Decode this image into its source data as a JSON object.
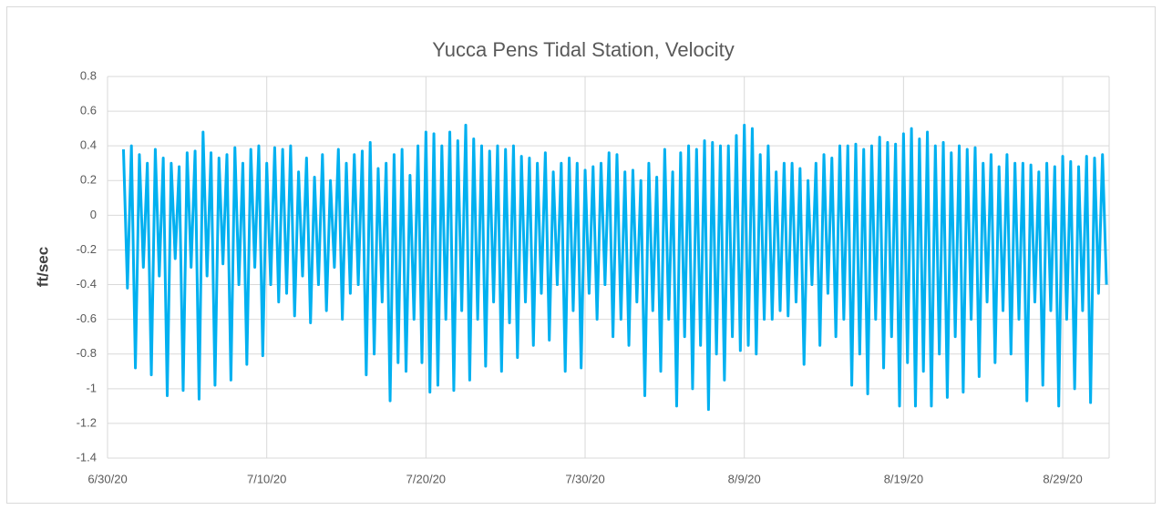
{
  "chart_data": {
    "type": "line",
    "title": "Yucca Pens Tidal Station, Velocity",
    "y_label": "ft/sec",
    "xlim": [
      "2020-06-30T00",
      "2020-08-31T22"
    ],
    "xticks": [
      {
        "value": "2020-06-30",
        "label": "6/30/20"
      },
      {
        "value": "2020-07-10",
        "label": "7/10/20"
      },
      {
        "value": "2020-07-20",
        "label": "7/20/20"
      },
      {
        "value": "2020-07-30",
        "label": "7/30/20"
      },
      {
        "value": "2020-08-09",
        "label": "8/9/20"
      },
      {
        "value": "2020-08-19",
        "label": "8/19/20"
      },
      {
        "value": "2020-08-29",
        "label": "8/29/20"
      }
    ],
    "ylim": [
      -1.4,
      0.8
    ],
    "yticks": [
      0.8,
      0.6,
      0.4,
      0.2,
      0,
      -0.2,
      -0.4,
      -0.6,
      -0.8,
      -1,
      -1.2,
      -1.4
    ],
    "grid": true,
    "x": [
      "2020-07-01T00",
      "2020-07-01T06",
      "2020-07-01T12",
      "2020-07-01T18",
      "2020-07-02T00",
      "2020-07-02T06",
      "2020-07-02T12",
      "2020-07-02T18",
      "2020-07-03T00",
      "2020-07-03T06",
      "2020-07-03T12",
      "2020-07-03T18",
      "2020-07-04T00",
      "2020-07-04T06",
      "2020-07-04T12",
      "2020-07-04T18",
      "2020-07-05T00",
      "2020-07-05T06",
      "2020-07-05T12",
      "2020-07-05T18",
      "2020-07-06T00",
      "2020-07-06T06",
      "2020-07-06T12",
      "2020-07-06T18",
      "2020-07-07T00",
      "2020-07-07T06",
      "2020-07-07T12",
      "2020-07-07T18",
      "2020-07-08T00",
      "2020-07-08T06",
      "2020-07-08T12",
      "2020-07-08T18",
      "2020-07-09T00",
      "2020-07-09T06",
      "2020-07-09T12",
      "2020-07-09T18",
      "2020-07-10T00",
      "2020-07-10T06",
      "2020-07-10T12",
      "2020-07-10T18",
      "2020-07-11T00",
      "2020-07-11T06",
      "2020-07-11T12",
      "2020-07-11T18",
      "2020-07-12T00",
      "2020-07-12T06",
      "2020-07-12T12",
      "2020-07-12T18",
      "2020-07-13T00",
      "2020-07-13T06",
      "2020-07-13T12",
      "2020-07-13T18",
      "2020-07-14T00",
      "2020-07-14T06",
      "2020-07-14T12",
      "2020-07-14T18",
      "2020-07-15T00",
      "2020-07-15T06",
      "2020-07-15T12",
      "2020-07-15T18",
      "2020-07-16T00",
      "2020-07-16T06",
      "2020-07-16T12",
      "2020-07-16T18",
      "2020-07-17T00",
      "2020-07-17T06",
      "2020-07-17T12",
      "2020-07-17T18",
      "2020-07-18T00",
      "2020-07-18T06",
      "2020-07-18T12",
      "2020-07-18T18",
      "2020-07-19T00",
      "2020-07-19T06",
      "2020-07-19T12",
      "2020-07-19T18",
      "2020-07-20T00",
      "2020-07-20T06",
      "2020-07-20T12",
      "2020-07-20T18",
      "2020-07-21T00",
      "2020-07-21T06",
      "2020-07-21T12",
      "2020-07-21T18",
      "2020-07-22T00",
      "2020-07-22T06",
      "2020-07-22T12",
      "2020-07-22T18",
      "2020-07-23T00",
      "2020-07-23T06",
      "2020-07-23T12",
      "2020-07-23T18",
      "2020-07-24T00",
      "2020-07-24T06",
      "2020-07-24T12",
      "2020-07-24T18",
      "2020-07-25T00",
      "2020-07-25T06",
      "2020-07-25T12",
      "2020-07-25T18",
      "2020-07-26T00",
      "2020-07-26T06",
      "2020-07-26T12",
      "2020-07-26T18",
      "2020-07-27T00",
      "2020-07-27T06",
      "2020-07-27T12",
      "2020-07-27T18",
      "2020-07-28T00",
      "2020-07-28T06",
      "2020-07-28T12",
      "2020-07-28T18",
      "2020-07-29T00",
      "2020-07-29T06",
      "2020-07-29T12",
      "2020-07-29T18",
      "2020-07-30T00",
      "2020-07-30T06",
      "2020-07-30T12",
      "2020-07-30T18",
      "2020-07-31T00",
      "2020-07-31T06",
      "2020-07-31T12",
      "2020-07-31T18",
      "2020-08-01T00",
      "2020-08-01T06",
      "2020-08-01T12",
      "2020-08-01T18",
      "2020-08-02T00",
      "2020-08-02T06",
      "2020-08-02T12",
      "2020-08-02T18",
      "2020-08-03T00",
      "2020-08-03T06",
      "2020-08-03T12",
      "2020-08-03T18",
      "2020-08-04T00",
      "2020-08-04T06",
      "2020-08-04T12",
      "2020-08-04T18",
      "2020-08-05T00",
      "2020-08-05T06",
      "2020-08-05T12",
      "2020-08-05T18",
      "2020-08-06T00",
      "2020-08-06T06",
      "2020-08-06T12",
      "2020-08-06T18",
      "2020-08-07T00",
      "2020-08-07T06",
      "2020-08-07T12",
      "2020-08-07T18",
      "2020-08-08T00",
      "2020-08-08T06",
      "2020-08-08T12",
      "2020-08-08T18",
      "2020-08-09T00",
      "2020-08-09T06",
      "2020-08-09T12",
      "2020-08-09T18",
      "2020-08-10T00",
      "2020-08-10T06",
      "2020-08-10T12",
      "2020-08-10T18",
      "2020-08-11T00",
      "2020-08-11T06",
      "2020-08-11T12",
      "2020-08-11T18",
      "2020-08-12T00",
      "2020-08-12T06",
      "2020-08-12T12",
      "2020-08-12T18",
      "2020-08-13T00",
      "2020-08-13T06",
      "2020-08-13T12",
      "2020-08-13T18",
      "2020-08-14T00",
      "2020-08-14T06",
      "2020-08-14T12",
      "2020-08-14T18",
      "2020-08-15T00",
      "2020-08-15T06",
      "2020-08-15T12",
      "2020-08-15T18",
      "2020-08-16T00",
      "2020-08-16T06",
      "2020-08-16T12",
      "2020-08-16T18",
      "2020-08-17T00",
      "2020-08-17T06",
      "2020-08-17T12",
      "2020-08-17T18",
      "2020-08-18T00",
      "2020-08-18T06",
      "2020-08-18T12",
      "2020-08-18T18",
      "2020-08-19T00",
      "2020-08-19T06",
      "2020-08-19T12",
      "2020-08-19T18",
      "2020-08-20T00",
      "2020-08-20T06",
      "2020-08-20T12",
      "2020-08-20T18",
      "2020-08-21T00",
      "2020-08-21T06",
      "2020-08-21T12",
      "2020-08-21T18",
      "2020-08-22T00",
      "2020-08-22T06",
      "2020-08-22T12",
      "2020-08-22T18",
      "2020-08-23T00",
      "2020-08-23T06",
      "2020-08-23T12",
      "2020-08-23T18",
      "2020-08-24T00",
      "2020-08-24T06",
      "2020-08-24T12",
      "2020-08-24T18",
      "2020-08-25T00",
      "2020-08-25T06",
      "2020-08-25T12",
      "2020-08-25T18",
      "2020-08-26T00",
      "2020-08-26T06",
      "2020-08-26T12",
      "2020-08-26T18",
      "2020-08-27T00",
      "2020-08-27T06",
      "2020-08-27T12",
      "2020-08-27T18",
      "2020-08-28T00",
      "2020-08-28T06",
      "2020-08-28T12",
      "2020-08-28T18",
      "2020-08-29T00",
      "2020-08-29T06",
      "2020-08-29T12",
      "2020-08-29T18",
      "2020-08-30T00",
      "2020-08-30T06",
      "2020-08-30T12",
      "2020-08-30T18",
      "2020-08-31T00",
      "2020-08-31T06",
      "2020-08-31T12",
      "2020-08-31T18"
    ],
    "series": [
      {
        "name": "Velocity",
        "color": "#00b0f0",
        "values": [
          0.38,
          -0.42,
          0.4,
          -0.88,
          0.35,
          -0.3,
          0.3,
          -0.92,
          0.38,
          -0.35,
          0.33,
          -1.04,
          0.3,
          -0.25,
          0.28,
          -1.01,
          0.36,
          -0.3,
          0.37,
          -1.06,
          0.48,
          -0.35,
          0.36,
          -0.98,
          0.33,
          -0.28,
          0.35,
          -0.95,
          0.39,
          -0.4,
          0.3,
          -0.86,
          0.38,
          -0.3,
          0.4,
          -0.81,
          0.3,
          -0.4,
          0.39,
          -0.5,
          0.38,
          -0.45,
          0.4,
          -0.58,
          0.25,
          -0.35,
          0.33,
          -0.62,
          0.22,
          -0.4,
          0.35,
          -0.55,
          0.2,
          -0.3,
          0.38,
          -0.6,
          0.3,
          -0.45,
          0.35,
          -0.4,
          0.37,
          -0.92,
          0.42,
          -0.8,
          0.27,
          -0.5,
          0.3,
          -1.07,
          0.35,
          -0.85,
          0.38,
          -0.9,
          0.23,
          -0.6,
          0.4,
          -0.85,
          0.48,
          -1.02,
          0.47,
          -0.98,
          0.4,
          -0.6,
          0.48,
          -1.01,
          0.43,
          -0.55,
          0.52,
          -0.95,
          0.44,
          -0.6,
          0.4,
          -0.87,
          0.37,
          -0.5,
          0.4,
          -0.9,
          0.38,
          -0.62,
          0.4,
          -0.82,
          0.34,
          -0.5,
          0.33,
          -0.75,
          0.3,
          -0.45,
          0.36,
          -0.72,
          0.25,
          -0.4,
          0.3,
          -0.9,
          0.33,
          -0.55,
          0.3,
          -0.88,
          0.26,
          -0.45,
          0.28,
          -0.6,
          0.3,
          -0.4,
          0.36,
          -0.7,
          0.35,
          -0.6,
          0.25,
          -0.75,
          0.26,
          -0.5,
          0.2,
          -1.04,
          0.3,
          -0.55,
          0.22,
          -0.9,
          0.38,
          -0.6,
          0.25,
          -1.1,
          0.36,
          -0.7,
          0.4,
          -1.0,
          0.38,
          -0.75,
          0.43,
          -1.12,
          0.42,
          -0.8,
          0.4,
          -0.95,
          0.4,
          -0.7,
          0.46,
          -0.78,
          0.52,
          -0.75,
          0.5,
          -0.8,
          0.35,
          -0.6,
          0.4,
          -0.6,
          0.25,
          -0.55,
          0.3,
          -0.58,
          0.3,
          -0.5,
          0.27,
          -0.86,
          0.2,
          -0.4,
          0.3,
          -0.75,
          0.35,
          -0.45,
          0.33,
          -0.7,
          0.4,
          -0.6,
          0.4,
          -0.98,
          0.41,
          -0.8,
          0.38,
          -1.03,
          0.4,
          -0.6,
          0.45,
          -0.88,
          0.42,
          -0.7,
          0.41,
          -1.1,
          0.47,
          -0.85,
          0.5,
          -1.1,
          0.44,
          -0.9,
          0.48,
          -1.1,
          0.4,
          -0.8,
          0.42,
          -1.05,
          0.36,
          -0.7,
          0.4,
          -1.02,
          0.38,
          -0.6,
          0.39,
          -0.93,
          0.3,
          -0.5,
          0.35,
          -0.85,
          0.28,
          -0.55,
          0.35,
          -0.8,
          0.3,
          -0.6,
          0.3,
          -1.07,
          0.29,
          -0.5,
          0.25,
          -0.98,
          0.3,
          -0.55,
          0.28,
          -1.1,
          0.34,
          -0.6,
          0.31,
          -1.0,
          0.28,
          -0.55,
          0.34,
          -1.08,
          0.33,
          -0.45,
          0.35,
          -0.4
        ]
      }
    ]
  }
}
